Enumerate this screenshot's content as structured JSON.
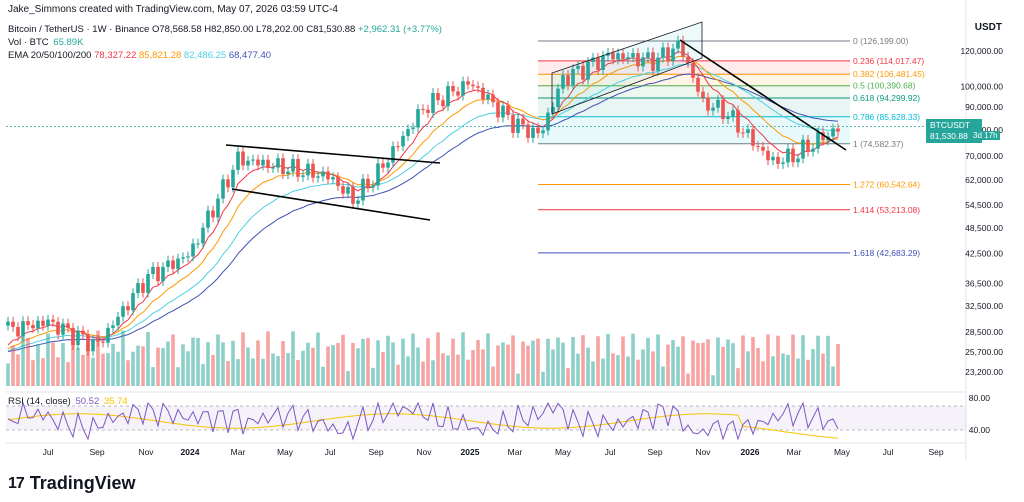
{
  "header": {
    "credit": "Jake_Simmons created with TradingView.com, May 07, 2026 03:59 UTC-4",
    "symbol_line": "Bitcoin / TetherUS · 1W · Binance",
    "ohlc": [
      "O78,568.58",
      "H82,850.00",
      "L78,202.00",
      "C81,530.88",
      "+2,962.31 (+3.77%)"
    ],
    "vol_label": "Vol · BTC",
    "vol_value": "65.89K",
    "ema_label": "EMA 20/50/100/200",
    "ema_values": [
      "78,327.22",
      "85,821.28",
      "82,486.25",
      "68,477.40"
    ],
    "ema_colors": [
      "#f23645",
      "#ff9800",
      "#4dd0e1",
      "#3f51b5"
    ],
    "axis_unit": "USDT"
  },
  "price_axis": {
    "ticks": [
      "120,000.00",
      "100,000.00",
      "90,000.00",
      "80,000.00",
      "70,000.00",
      "62,000.00",
      "54,500.00",
      "48,500.00",
      "42,500.00",
      "36,500.00",
      "32,500.00",
      "28,500.00",
      "25,700.00",
      "23,200.00"
    ],
    "current_tag": {
      "symbol": "BTCUSDT",
      "price": "81,530.88",
      "countdown": "3d 17h"
    }
  },
  "fib_levels": [
    {
      "label": "0 (126,199.00)",
      "color": "#787b86"
    },
    {
      "label": "0.236 (114,017.47)",
      "color": "#f23645"
    },
    {
      "label": "0.382 (106,481.45)",
      "color": "#ff9800"
    },
    {
      "label": "0.5 (100,390.68)",
      "color": "#4caf50"
    },
    {
      "label": "0.618 (94,299.92)",
      "color": "#089981"
    },
    {
      "label": "0.786 (85,628.33)",
      "color": "#00bcd4"
    },
    {
      "label": "1 (74,582.37)",
      "color": "#787b86"
    },
    {
      "label": "1.272 (60,542.64)",
      "color": "#ff9800"
    },
    {
      "label": "1.414 (53,213.08)",
      "color": "#f23645"
    },
    {
      "label": "1.618 (42,683.29)",
      "color": "#3f51b5"
    }
  ],
  "rsi": {
    "label": "RSI (14, close)",
    "value": "50.52",
    "ma_value": "35.74",
    "axis": [
      "80.00",
      "40.00"
    ]
  },
  "time_axis": [
    "Jul",
    "Sep",
    "Nov",
    "2024",
    "Mar",
    "May",
    "Jul",
    "Sep",
    "Nov",
    "2025",
    "Mar",
    "May",
    "Jul",
    "Sep",
    "Nov",
    "2026",
    "Mar",
    "May",
    "Jul",
    "Sep"
  ],
  "brand": "TradingView",
  "chart_data": {
    "type": "candlestick",
    "timeframe": "1W",
    "approx_weekly_close_samples": [
      {
        "x": "Jul 2023",
        "close": 30000
      },
      {
        "x": "Sep 2023",
        "close": 26500
      },
      {
        "x": "Nov 2023",
        "close": 37500
      },
      {
        "x": "Jan 2024",
        "close": 42500
      },
      {
        "x": "Mar 2024",
        "close": 69000
      },
      {
        "x": "May 2024",
        "close": 66000
      },
      {
        "x": "Jul 2024",
        "close": 63000
      },
      {
        "x": "Aug 2024",
        "close": 56000
      },
      {
        "x": "Sep 2024",
        "close": 63500
      },
      {
        "x": "Nov 2024",
        "close": 90000
      },
      {
        "x": "Jan 2025",
        "close": 102000
      },
      {
        "x": "Mar 2025",
        "close": 82500
      },
      {
        "x": "Apr 2025",
        "close": 78000
      },
      {
        "x": "May 2025",
        "close": 104000
      },
      {
        "x": "Jul 2025",
        "close": 117500
      },
      {
        "x": "Sep 2025",
        "close": 114000
      },
      {
        "x": "Oct 2025",
        "close": 124000
      },
      {
        "x": "Nov 2025",
        "close": 92000
      },
      {
        "x": "Dec 2025",
        "close": 88000
      },
      {
        "x": "Feb 2026",
        "close": 68000
      },
      {
        "x": "Mar 2026",
        "close": 70000
      },
      {
        "x": "Apr 2026",
        "close": 76000
      },
      {
        "x": "May 2026",
        "close": 81530.88
      }
    ],
    "y_axis_scale": "log",
    "ylim": [
      23200,
      126199
    ],
    "fib_retracement": [
      126199.0,
      114017.47,
      106481.45,
      100390.68,
      94299.92,
      85628.33,
      74582.37,
      60542.64,
      53213.08,
      42683.29
    ],
    "ema": {
      "20": 78327.22,
      "50": 85821.28,
      "100": 82486.25,
      "200": 68477.4
    },
    "rsi_14": 50.52,
    "rsi_ma": 35.74
  }
}
